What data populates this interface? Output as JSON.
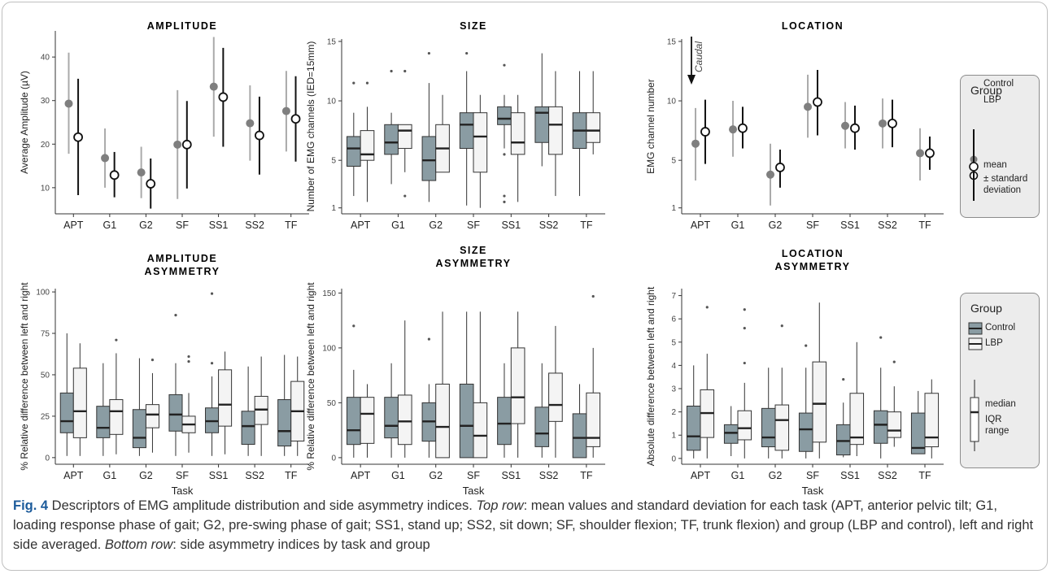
{
  "caption": {
    "label": "Fig. 4",
    "text_1": " Descriptors of EMG amplitude distribution and side asymmetry indices. ",
    "top_row_label": "Top row",
    "text_2": ": mean values and standard deviation for each task (APT, anterior pelvic tilt; G1, loading response phase of gait; G2, pre-swing phase of gait; SS1, stand up; SS2, sit down; SF, shoulder flexion; TF, trunk flexion) and group (LBP and control), left and right side averaged. ",
    "bottom_row_label": "Bottom row",
    "text_3": ": side asymmetry indices by task and group"
  },
  "legend_top": {
    "title": "Group",
    "control": "Control",
    "lbp": "LBP",
    "mean": "mean",
    "sd": "± standard deviation"
  },
  "legend_bottom": {
    "title": "Group",
    "control": "Control",
    "lbp": "LBP",
    "median": "median",
    "iqr": "IQR range"
  },
  "colors": {
    "control_point": "#7f7f7f",
    "control_line": "#aaaaaa",
    "lbp_line": "#111111",
    "control_box": "#8a9ca3",
    "lbp_box": "#f4f4f4"
  },
  "chart_data": [
    {
      "type": "pointrange",
      "title": "AMPLITUDE",
      "ylabel": "Average Amplitude (µV)",
      "xlabel": "",
      "categories": [
        "APT",
        "G1",
        "G2",
        "SF",
        "SS1",
        "SS2",
        "TF"
      ],
      "ylim": [
        4,
        46
      ],
      "yticks": [
        10,
        20,
        30,
        40
      ],
      "series": [
        {
          "name": "Control",
          "mean": [
            29.3,
            16.8,
            13.5,
            19.9,
            33.2,
            24.8,
            27.6
          ],
          "sd_low": [
            17.8,
            10.0,
            7.6,
            7.4,
            21.7,
            16.2,
            18.3
          ],
          "sd_high": [
            41.0,
            23.6,
            19.4,
            32.4,
            44.6,
            33.5,
            36.8
          ]
        },
        {
          "name": "LBP",
          "mean": [
            21.6,
            12.9,
            10.9,
            19.9,
            30.8,
            22.0,
            25.8
          ],
          "sd_low": [
            8.3,
            7.8,
            5.2,
            9.8,
            19.4,
            13.0,
            16.0
          ],
          "sd_high": [
            35.0,
            18.2,
            16.7,
            29.9,
            42.1,
            30.9,
            35.6
          ]
        }
      ]
    },
    {
      "type": "box",
      "title": "SIZE",
      "ylabel": "Number of EMG channels (IED=15mm)",
      "xlabel": "",
      "categories": [
        "APT",
        "G1",
        "G2",
        "SF",
        "SS1",
        "SS2",
        "TF"
      ],
      "ylim": [
        0.5,
        15.2
      ],
      "yticks": [
        1,
        5,
        10,
        15
      ],
      "series": [
        {
          "name": "Control",
          "boxes": [
            {
              "lo": 2,
              "q1": 4.5,
              "med": 6,
              "q3": 7,
              "hi": 9,
              "outliers": [
                11.5
              ]
            },
            {
              "lo": 3,
              "q1": 5.5,
              "med": 6.5,
              "q3": 8,
              "hi": 9,
              "outliers": [
                12.5
              ]
            },
            {
              "lo": 1.5,
              "q1": 3.3,
              "med": 5,
              "q3": 7,
              "hi": 11.5,
              "outliers": [
                14
              ]
            },
            {
              "lo": 1.2,
              "q1": 6,
              "med": 8,
              "q3": 9,
              "hi": 12.5,
              "outliers": [
                14
              ]
            },
            {
              "lo": 6,
              "q1": 8,
              "med": 8.5,
              "q3": 9.5,
              "hi": 10.5,
              "outliers": [
                13,
                5.5,
                2,
                1.5
              ]
            },
            {
              "lo": 4.5,
              "q1": 6.5,
              "med": 9,
              "q3": 9.5,
              "hi": 14,
              "outliers": []
            },
            {
              "lo": 2,
              "q1": 6,
              "med": 7.5,
              "q3": 9,
              "hi": 12.5,
              "outliers": []
            }
          ]
        },
        {
          "name": "LBP",
          "boxes": [
            {
              "lo": 1.5,
              "q1": 5,
              "med": 5.5,
              "q3": 7.5,
              "hi": 9.5,
              "outliers": [
                11.5
              ]
            },
            {
              "lo": 4,
              "q1": 6,
              "med": 7.5,
              "q3": 8,
              "hi": 8,
              "outliers": [
                12.5,
                2
              ]
            },
            {
              "lo": 4,
              "q1": 4,
              "med": 6,
              "q3": 8,
              "hi": 10.5,
              "outliers": []
            },
            {
              "lo": 1,
              "q1": 4,
              "med": 7,
              "q3": 9,
              "hi": 10.5,
              "outliers": []
            },
            {
              "lo": 1.5,
              "q1": 5.5,
              "med": 6.5,
              "q3": 9,
              "hi": 10.5,
              "outliers": []
            },
            {
              "lo": 2,
              "q1": 5.5,
              "med": 8,
              "q3": 9.5,
              "hi": 12.5,
              "outliers": []
            },
            {
              "lo": 5.5,
              "q1": 6.5,
              "med": 7.5,
              "q3": 9,
              "hi": 12.5,
              "outliers": []
            }
          ]
        }
      ]
    },
    {
      "type": "pointrange",
      "title": "LOCATION",
      "ylabel": "EMG channel number",
      "xlabel": "",
      "annotation": "Caudal",
      "categories": [
        "APT",
        "G1",
        "G2",
        "SF",
        "SS1",
        "SS2",
        "TF"
      ],
      "ylim": [
        0.5,
        15.2
      ],
      "yticks": [
        1,
        5,
        10,
        15
      ],
      "series": [
        {
          "name": "Control",
          "mean": [
            6.4,
            7.6,
            3.8,
            9.5,
            7.9,
            8.1,
            5.6
          ],
          "sd_low": [
            3.3,
            5.3,
            1.2,
            6.9,
            6.0,
            6.0,
            3.3
          ],
          "sd_high": [
            9.4,
            10.0,
            6.4,
            12.2,
            9.9,
            10.2,
            7.7
          ]
        },
        {
          "name": "LBP",
          "mean": [
            7.4,
            7.7,
            4.4,
            9.9,
            7.7,
            8.1,
            5.6
          ],
          "sd_low": [
            4.7,
            6.0,
            2.7,
            7.1,
            5.9,
            6.1,
            4.2
          ],
          "sd_high": [
            10.1,
            9.5,
            5.9,
            12.6,
            9.6,
            10.1,
            7.0
          ]
        }
      ]
    },
    {
      "type": "box",
      "title": "AMPLITUDE ASYMMETRY",
      "ylabel": "% Relative difference between left and right",
      "xlabel": "Task",
      "categories": [
        "APT",
        "G1",
        "G2",
        "SF",
        "SS1",
        "SS2",
        "TF"
      ],
      "ylim": [
        -4,
        102
      ],
      "yticks": [
        0,
        25,
        50,
        75,
        100
      ],
      "series": [
        {
          "name": "Control",
          "boxes": [
            {
              "lo": 1,
              "q1": 15,
              "med": 22,
              "q3": 39,
              "hi": 75,
              "outliers": []
            },
            {
              "lo": 1,
              "q1": 12,
              "med": 18,
              "q3": 31,
              "hi": 57,
              "outliers": []
            },
            {
              "lo": 1,
              "q1": 6,
              "med": 12,
              "q3": 29,
              "hi": 60,
              "outliers": []
            },
            {
              "lo": 1,
              "q1": 16,
              "med": 26,
              "q3": 38,
              "hi": 57,
              "outliers": [
                86
              ]
            },
            {
              "lo": 1,
              "q1": 15,
              "med": 22,
              "q3": 30,
              "hi": 49,
              "outliers": [
                99,
                57
              ]
            },
            {
              "lo": 1,
              "q1": 8,
              "med": 19,
              "q3": 28,
              "hi": 55,
              "outliers": []
            },
            {
              "lo": 1,
              "q1": 7,
              "med": 16,
              "q3": 35,
              "hi": 62,
              "outliers": []
            }
          ]
        },
        {
          "name": "LBP",
          "boxes": [
            {
              "lo": 1,
              "q1": 12,
              "med": 28,
              "q3": 54,
              "hi": 69,
              "outliers": []
            },
            {
              "lo": 2,
              "q1": 14,
              "med": 28,
              "q3": 35,
              "hi": 63,
              "outliers": [
                71
              ]
            },
            {
              "lo": 3,
              "q1": 18,
              "med": 26,
              "q3": 32,
              "hi": 51,
              "outliers": [
                59
              ]
            },
            {
              "lo": 3,
              "q1": 15,
              "med": 20,
              "q3": 25,
              "hi": 39,
              "outliers": [
                61,
                58
              ]
            },
            {
              "lo": 2,
              "q1": 19,
              "med": 32,
              "q3": 53,
              "hi": 64,
              "outliers": []
            },
            {
              "lo": 1,
              "q1": 20,
              "med": 29,
              "q3": 37,
              "hi": 61,
              "outliers": []
            },
            {
              "lo": 1,
              "q1": 10,
              "med": 28,
              "q3": 46,
              "hi": 61,
              "outliers": []
            }
          ]
        }
      ]
    },
    {
      "type": "box",
      "title": "SIZE ASYMMETRY",
      "ylabel": "% Relative difference between left and right",
      "xlabel": "Task",
      "categories": [
        "APT",
        "G1",
        "G2",
        "SF",
        "SS1",
        "SS2",
        "TF"
      ],
      "ylim": [
        -6,
        154
      ],
      "yticks": [
        0,
        50,
        100,
        150
      ],
      "series": [
        {
          "name": "Control",
          "boxes": [
            {
              "lo": 0,
              "q1": 12,
              "med": 25,
              "q3": 55,
              "hi": 80,
              "outliers": [
                120
              ]
            },
            {
              "lo": 0,
              "q1": 18,
              "med": 29,
              "q3": 55,
              "hi": 86,
              "outliers": []
            },
            {
              "lo": 0,
              "q1": 15,
              "med": 33,
              "q3": 50,
              "hi": 67,
              "outliers": [
                108
              ]
            },
            {
              "lo": 0,
              "q1": 0,
              "med": 29,
              "q3": 67,
              "hi": 133,
              "outliers": []
            },
            {
              "lo": 0,
              "q1": 12,
              "med": 31,
              "q3": 55,
              "hi": 86,
              "outliers": []
            },
            {
              "lo": 0,
              "q1": 10,
              "med": 22,
              "q3": 46,
              "hi": 86,
              "outliers": []
            },
            {
              "lo": 0,
              "q1": 0,
              "med": 18,
              "q3": 40,
              "hi": 67,
              "outliers": []
            }
          ]
        },
        {
          "name": "LBP",
          "boxes": [
            {
              "lo": 0,
              "q1": 13,
              "med": 40,
              "q3": 55,
              "hi": 67,
              "outliers": []
            },
            {
              "lo": 0,
              "q1": 12,
              "med": 33,
              "q3": 57,
              "hi": 125,
              "outliers": []
            },
            {
              "lo": 0,
              "q1": 0,
              "med": 28,
              "q3": 67,
              "hi": 133,
              "outliers": []
            },
            {
              "lo": 0,
              "q1": 0,
              "med": 20,
              "q3": 50,
              "hi": 133,
              "outliers": []
            },
            {
              "lo": 0,
              "q1": 31,
              "med": 55,
              "q3": 100,
              "hi": 133,
              "outliers": []
            },
            {
              "lo": 0,
              "q1": 33,
              "med": 48,
              "q3": 77,
              "hi": 120,
              "outliers": []
            },
            {
              "lo": 0,
              "q1": 10,
              "med": 18,
              "q3": 59,
              "hi": 100,
              "outliers": [
                147
              ]
            }
          ]
        }
      ]
    },
    {
      "type": "box",
      "title": "LOCATION ASYMMETRY",
      "ylabel": "Absolute difference between left and right",
      "xlabel": "Task",
      "categories": [
        "APT",
        "G1",
        "G2",
        "SF",
        "SS1",
        "SS2",
        "TF"
      ],
      "ylim": [
        -0.25,
        7.3
      ],
      "yticks": [
        0,
        1,
        2,
        3,
        4,
        5,
        6,
        7
      ],
      "series": [
        {
          "name": "Control",
          "boxes": [
            {
              "lo": 0,
              "q1": 0.35,
              "med": 0.95,
              "q3": 2.25,
              "hi": 4,
              "outliers": []
            },
            {
              "lo": 0.1,
              "q1": 0.65,
              "med": 1.1,
              "q3": 1.45,
              "hi": 2.25,
              "outliers": []
            },
            {
              "lo": 0,
              "q1": 0.5,
              "med": 0.9,
              "q3": 2.15,
              "hi": 3.9,
              "outliers": []
            },
            {
              "lo": 0,
              "q1": 0.3,
              "med": 1.25,
              "q3": 1.95,
              "hi": 3.9,
              "outliers": [
                4.85
              ]
            },
            {
              "lo": 0.05,
              "q1": 0.15,
              "med": 0.75,
              "q3": 1.45,
              "hi": 2.4,
              "outliers": [
                3.4
              ]
            },
            {
              "lo": 0,
              "q1": 0.65,
              "med": 1.45,
              "q3": 2.05,
              "hi": 3.9,
              "outliers": [
                5.2
              ]
            },
            {
              "lo": 0.2,
              "q1": 0.2,
              "med": 0.45,
              "q3": 1.95,
              "hi": 2.9,
              "outliers": []
            }
          ]
        },
        {
          "name": "LBP",
          "boxes": [
            {
              "lo": 0,
              "q1": 0.9,
              "med": 1.95,
              "q3": 2.95,
              "hi": 4.5,
              "outliers": [
                6.5
              ]
            },
            {
              "lo": 0,
              "q1": 0.8,
              "med": 1.3,
              "q3": 2.05,
              "hi": 3.25,
              "outliers": [
                6.4,
                5.6,
                4.1
              ]
            },
            {
              "lo": 0,
              "q1": 0.35,
              "med": 1.65,
              "q3": 2.3,
              "hi": 3.9,
              "outliers": [
                5.7
              ]
            },
            {
              "lo": 0,
              "q1": 0.7,
              "med": 2.35,
              "q3": 4.15,
              "hi": 6.7,
              "outliers": []
            },
            {
              "lo": 0.1,
              "q1": 0.6,
              "med": 0.9,
              "q3": 2.8,
              "hi": 5,
              "outliers": []
            },
            {
              "lo": 0.5,
              "q1": 0.9,
              "med": 1.2,
              "q3": 2.0,
              "hi": 3.1,
              "outliers": [
                4.15
              ]
            },
            {
              "lo": 0,
              "q1": 0.5,
              "med": 0.9,
              "q3": 2.8,
              "hi": 3.4,
              "outliers": []
            }
          ]
        }
      ]
    }
  ]
}
